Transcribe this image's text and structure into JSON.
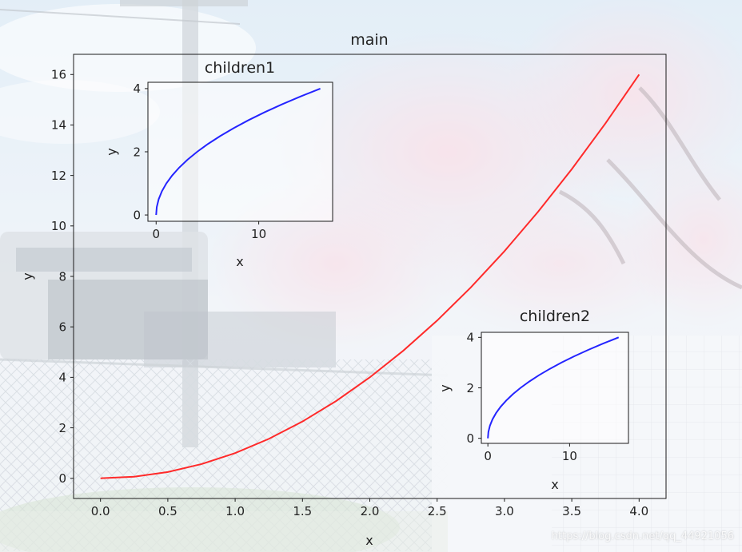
{
  "colors": {
    "main_curve": "#ff2a2a",
    "inset_curve": "#2424ff",
    "axis": "#1a1a1a"
  },
  "background": {
    "description": "anime-style scene with cherry blossom tree, sky, train and chain-link fence, washed out with a translucent white overlay"
  },
  "chart_data": [
    {
      "id": "main",
      "type": "line",
      "title": "main",
      "xlabel": "x",
      "ylabel": "y",
      "xlim": [
        -0.2,
        4.2
      ],
      "ylim": [
        -0.8,
        16.8
      ],
      "xticks": [
        0.0,
        0.5,
        1.0,
        1.5,
        2.0,
        2.5,
        3.0,
        3.5,
        4.0
      ],
      "xtick_labels": [
        "0.0",
        "0.5",
        "1.0",
        "1.5",
        "2.0",
        "2.5",
        "3.0",
        "3.5",
        "4.0"
      ],
      "yticks": [
        0,
        2,
        4,
        6,
        8,
        10,
        12,
        14,
        16
      ],
      "ytick_labels": [
        "0",
        "2",
        "4",
        "6",
        "8",
        "10",
        "12",
        "14",
        "16"
      ],
      "series": [
        {
          "color": "#ff2a2a",
          "x": [
            0.0,
            0.25,
            0.5,
            0.75,
            1.0,
            1.25,
            1.5,
            1.75,
            2.0,
            2.25,
            2.5,
            2.75,
            3.0,
            3.25,
            3.5,
            3.75,
            4.0
          ],
          "y": [
            0.0,
            0.0625,
            0.25,
            0.5625,
            1.0,
            1.5625,
            2.25,
            3.0625,
            4.0,
            5.0625,
            6.25,
            7.5625,
            9.0,
            10.5625,
            12.25,
            14.0625,
            16.0
          ]
        }
      ],
      "grid": false
    },
    {
      "id": "children1",
      "type": "line",
      "title": "children1",
      "xlabel": "x",
      "ylabel": "y",
      "xlim": [
        -0.8,
        17.2
      ],
      "ylim": [
        -0.2,
        4.2
      ],
      "xticks": [
        0,
        10
      ],
      "xtick_labels": [
        "0",
        "10"
      ],
      "yticks": [
        0,
        2,
        4
      ],
      "ytick_labels": [
        "0",
        "2",
        "4"
      ],
      "series": [
        {
          "color": "#2424ff",
          "x": [
            0,
            0.0625,
            0.25,
            0.5625,
            1,
            1.5625,
            2.25,
            3.0625,
            4,
            5.0625,
            6.25,
            7.5625,
            9,
            10.5625,
            12.25,
            14.0625,
            16
          ],
          "y": [
            0,
            0.25,
            0.5,
            0.75,
            1.0,
            1.25,
            1.5,
            1.75,
            2.0,
            2.25,
            2.5,
            2.75,
            3.0,
            3.25,
            3.5,
            3.75,
            4.0
          ]
        }
      ],
      "grid": false
    },
    {
      "id": "children2",
      "type": "line",
      "title": "children2",
      "xlabel": "x",
      "ylabel": "y",
      "xlim": [
        -0.8,
        17.2
      ],
      "ylim": [
        -0.2,
        4.2
      ],
      "xticks": [
        0,
        10
      ],
      "xtick_labels": [
        "0",
        "10"
      ],
      "yticks": [
        0,
        2,
        4
      ],
      "ytick_labels": [
        "0",
        "2",
        "4"
      ],
      "series": [
        {
          "color": "#2424ff",
          "x": [
            0,
            0.0625,
            0.25,
            0.5625,
            1,
            1.5625,
            2.25,
            3.0625,
            4,
            5.0625,
            6.25,
            7.5625,
            9,
            10.5625,
            12.25,
            14.0625,
            16
          ],
          "y": [
            0,
            0.25,
            0.5,
            0.75,
            1.0,
            1.25,
            1.5,
            1.75,
            2.0,
            2.25,
            2.5,
            2.75,
            3.0,
            3.25,
            3.5,
            3.75,
            4.0
          ]
        }
      ],
      "grid": false
    }
  ],
  "watermark": "https://blog.csdn.net/qq_44921056"
}
